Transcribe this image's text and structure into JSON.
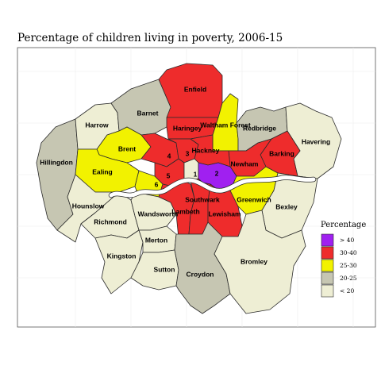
{
  "title": "Percentage of children living in poverty, 2006-15",
  "colors": {
    "gt40": "#a020f0",
    "c30_40": "#ee2c2c",
    "c25_30": "#f2f200",
    "c20_25": "#c6c6b2",
    "lt20": "#eeeed4"
  },
  "legend": {
    "title": "Percentage",
    "items": [
      {
        "label": "> 40",
        "category": "gt40"
      },
      {
        "label": "30-40",
        "category": "c30_40"
      },
      {
        "label": "25-30",
        "category": "c25_30"
      },
      {
        "label": "20-25",
        "category": "c20_25"
      },
      {
        "label": "< 20",
        "category": "lt20"
      }
    ]
  },
  "boroughs": [
    {
      "id": "enfield",
      "label": "Enfield",
      "category": "c30_40"
    },
    {
      "id": "barnet",
      "label": "Barnet",
      "category": "c20_25"
    },
    {
      "id": "harrow",
      "label": "Harrow",
      "category": "lt20"
    },
    {
      "id": "haringey",
      "label": "Haringey",
      "category": "c30_40"
    },
    {
      "id": "waltham-forest",
      "label": "Waltham Forest",
      "category": "c25_30"
    },
    {
      "id": "redbridge",
      "label": "Redbridge",
      "category": "c20_25"
    },
    {
      "id": "havering",
      "label": "Havering",
      "category": "lt20"
    },
    {
      "id": "hillingdon",
      "label": "Hillingdon",
      "category": "c20_25"
    },
    {
      "id": "brent",
      "label": "Brent",
      "category": "c25_30"
    },
    {
      "id": "ealing",
      "label": "Ealing",
      "category": "c25_30"
    },
    {
      "id": "barnet-3",
      "label": "3",
      "category": "c30_40"
    },
    {
      "id": "hackney",
      "label": "Hackney",
      "category": "c30_40"
    },
    {
      "id": "b4",
      "label": "4",
      "category": "c30_40"
    },
    {
      "id": "b5",
      "label": "5",
      "category": "c30_40"
    },
    {
      "id": "b6",
      "label": "6",
      "category": "c25_30"
    },
    {
      "id": "b1",
      "label": "1",
      "category": "lt20"
    },
    {
      "id": "b2",
      "label": "2",
      "category": "gt40"
    },
    {
      "id": "newham",
      "label": "Newham",
      "category": "c30_40"
    },
    {
      "id": "barking",
      "label": "Barking",
      "category": "c30_40"
    },
    {
      "id": "hounslow",
      "label": "Hounslow",
      "category": "lt20"
    },
    {
      "id": "richmond",
      "label": "Richmond",
      "category": "lt20"
    },
    {
      "id": "wandsworth",
      "label": "Wandsworth",
      "category": "lt20"
    },
    {
      "id": "lambeth",
      "label": "Lambeth",
      "category": "c30_40"
    },
    {
      "id": "southwark",
      "label": "Southwark",
      "category": "c30_40"
    },
    {
      "id": "lewisham",
      "label": "Lewisham",
      "category": "c30_40"
    },
    {
      "id": "greenwich",
      "label": "Greenwich",
      "category": "c25_30"
    },
    {
      "id": "bexley",
      "label": "Bexley",
      "category": "lt20"
    },
    {
      "id": "kingston",
      "label": "Kingston",
      "category": "lt20"
    },
    {
      "id": "merton",
      "label": "Merton",
      "category": "lt20"
    },
    {
      "id": "sutton",
      "label": "Sutton",
      "category": "lt20"
    },
    {
      "id": "croydon",
      "label": "Croydon",
      "category": "c20_25"
    },
    {
      "id": "bromley",
      "label": "Bromley",
      "category": "lt20"
    }
  ]
}
